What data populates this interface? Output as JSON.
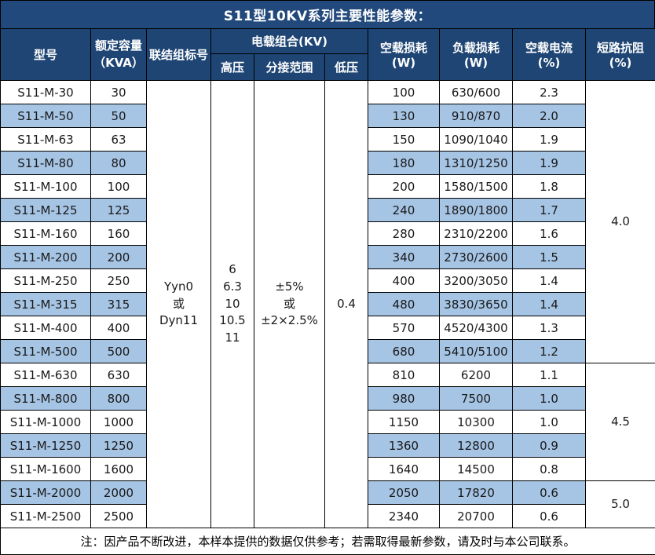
{
  "title": "S11型10KV系列主要性能参数：",
  "colors": {
    "title_bg": "#21497B",
    "header_bg": "#1E4573",
    "row_alt": "#A6C4E4",
    "border": "#000000",
    "header_text": "#FFFFFF"
  },
  "header": {
    "model": "型号",
    "capacity": "额定容量\n（KVA）",
    "connection": "联结组标号",
    "voltage_group": "电载组合(KV)",
    "hv": "高压",
    "tap": "分接范围",
    "lv": "低压",
    "no_load_loss": "空载损耗(W)",
    "load_loss": "负载损耗(W)",
    "no_load_current": "空载电流(%)",
    "impedance": "短路抗阻(%)"
  },
  "merged": {
    "connection": "Yyn0\n或\nDyn11",
    "hv": "6\n6.3\n10\n10.5\n11",
    "tap": "±5%\n或\n±2×2.5%",
    "lv": "0.4"
  },
  "impedance_groups": [
    {
      "value": "4.0",
      "span": 12
    },
    {
      "value": "4.5",
      "span": 5
    },
    {
      "value": "5.0",
      "span": 2
    }
  ],
  "rows": [
    {
      "model": "S11-M-30",
      "capacity": "30",
      "no_load_loss": "100",
      "load_loss": "630/600",
      "no_load_current": "2.3"
    },
    {
      "model": "S11-M-50",
      "capacity": "50",
      "no_load_loss": "130",
      "load_loss": "910/870",
      "no_load_current": "2.0"
    },
    {
      "model": "S11-M-63",
      "capacity": "63",
      "no_load_loss": "150",
      "load_loss": "1090/1040",
      "no_load_current": "1.9"
    },
    {
      "model": "S11-M-80",
      "capacity": "80",
      "no_load_loss": "180",
      "load_loss": "1310/1250",
      "no_load_current": "1.9"
    },
    {
      "model": "S11-M-100",
      "capacity": "100",
      "no_load_loss": "200",
      "load_loss": "1580/1500",
      "no_load_current": "1.8"
    },
    {
      "model": "S11-M-125",
      "capacity": "125",
      "no_load_loss": "240",
      "load_loss": "1890/1800",
      "no_load_current": "1.7"
    },
    {
      "model": "S11-M-160",
      "capacity": "160",
      "no_load_loss": "280",
      "load_loss": "2310/2200",
      "no_load_current": "1.6"
    },
    {
      "model": "S11-M-200",
      "capacity": "200",
      "no_load_loss": "340",
      "load_loss": "2730/2600",
      "no_load_current": "1.5"
    },
    {
      "model": "S11-M-250",
      "capacity": "250",
      "no_load_loss": "400",
      "load_loss": "3200/3050",
      "no_load_current": "1.4"
    },
    {
      "model": "S11-M-315",
      "capacity": "315",
      "no_load_loss": "480",
      "load_loss": "3830/3650",
      "no_load_current": "1.4"
    },
    {
      "model": "S11-M-400",
      "capacity": "400",
      "no_load_loss": "570",
      "load_loss": "4520/4300",
      "no_load_current": "1.3"
    },
    {
      "model": "S11-M-500",
      "capacity": "500",
      "no_load_loss": "680",
      "load_loss": "5410/5100",
      "no_load_current": "1.2"
    },
    {
      "model": "S11-M-630",
      "capacity": "630",
      "no_load_loss": "810",
      "load_loss": "6200",
      "no_load_current": "1.1"
    },
    {
      "model": "S11-M-800",
      "capacity": "800",
      "no_load_loss": "980",
      "load_loss": "7500",
      "no_load_current": "1.0"
    },
    {
      "model": "S11-M-1000",
      "capacity": "1000",
      "no_load_loss": "1150",
      "load_loss": "10300",
      "no_load_current": "1.0"
    },
    {
      "model": "S11-M-1250",
      "capacity": "1250",
      "no_load_loss": "1360",
      "load_loss": "12800",
      "no_load_current": "0.9"
    },
    {
      "model": "S11-M-1600",
      "capacity": "1600",
      "no_load_loss": "1640",
      "load_loss": "14500",
      "no_load_current": "0.8"
    },
    {
      "model": "S11-M-2000",
      "capacity": "2000",
      "no_load_loss": "2050",
      "load_loss": "17820",
      "no_load_current": "0.6"
    },
    {
      "model": "S11-M-2500",
      "capacity": "2500",
      "no_load_loss": "2340",
      "load_loss": "20700",
      "no_load_current": "0.6"
    }
  ],
  "note": "注：因产品不断改进，本样本提供的数据仅供参考；若需取得最新参数，请及时与本公司联系。"
}
